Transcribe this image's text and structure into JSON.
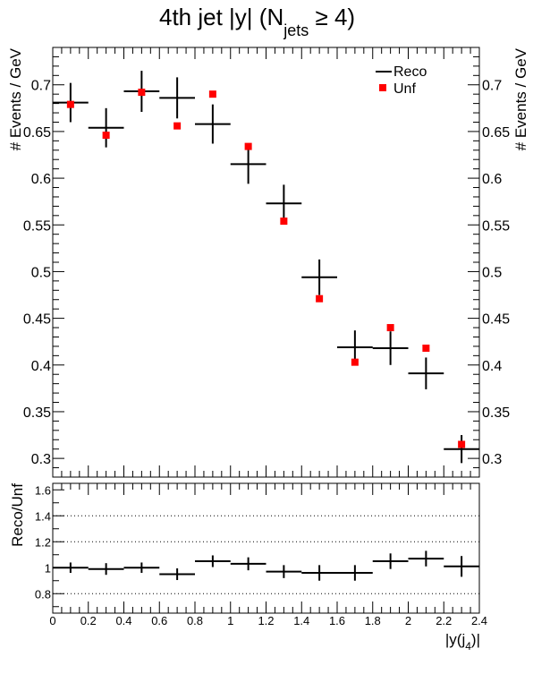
{
  "chart_data": [
    {
      "type": "scatter",
      "title": {
        "main": "4th jet |y| (N",
        "subscript": "jets",
        "suffix": " ≥ 4)"
      },
      "ylabel": "# Events / GeV",
      "ylim": [
        0.28,
        0.74
      ],
      "y_ticks": [
        0.3,
        0.35,
        0.4,
        0.45,
        0.5,
        0.55,
        0.6,
        0.65,
        0.7
      ],
      "y_tick_labels": [
        "0.3",
        "0.35",
        "0.4",
        "0.45",
        "0.5",
        "0.55",
        "0.6",
        "0.65",
        "0.7"
      ],
      "xlim": [
        0,
        2.4
      ],
      "bin_edges": [
        0,
        0.2,
        0.4,
        0.6,
        0.8,
        1.0,
        1.2,
        1.4,
        1.6,
        1.8,
        2.0,
        2.2,
        2.4
      ],
      "legend": {
        "placement": "top-right",
        "entries": [
          {
            "name": "Reco",
            "marker": "cross",
            "color": "#000000"
          },
          {
            "name": "Unf",
            "marker": "square",
            "color": "#ff0000"
          }
        ]
      },
      "series": [
        {
          "name": "Reco",
          "x": [
            0.1,
            0.3,
            0.5,
            0.7,
            0.9,
            1.1,
            1.3,
            1.5,
            1.7,
            1.9,
            2.1,
            2.3
          ],
          "values": [
            0.681,
            0.654,
            0.693,
            0.686,
            0.658,
            0.615,
            0.573,
            0.494,
            0.419,
            0.418,
            0.391,
            0.31
          ],
          "y_err": [
            0.021,
            0.021,
            0.022,
            0.022,
            0.021,
            0.021,
            0.02,
            0.019,
            0.018,
            0.018,
            0.017,
            0.015
          ],
          "color": "#000000"
        },
        {
          "name": "Unf",
          "x": [
            0.1,
            0.3,
            0.5,
            0.7,
            0.9,
            1.1,
            1.3,
            1.5,
            1.7,
            1.9,
            2.1,
            2.3
          ],
          "values": [
            0.679,
            0.646,
            0.692,
            0.656,
            0.69,
            0.634,
            0.554,
            0.471,
            0.403,
            0.44,
            0.418,
            0.315
          ],
          "color": "#ff0000"
        }
      ]
    },
    {
      "type": "scatter",
      "ylabel": "Reco/Unf",
      "xlabel": "|y(j",
      "xlabel_sub": "4",
      "xlabel_suffix": ")|",
      "ylim": [
        0.65,
        1.65
      ],
      "y_ticks": [
        0.8,
        1.0,
        1.2,
        1.4,
        1.6
      ],
      "y_tick_labels": [
        "0.8",
        "1",
        "1.2",
        "1.4",
        "1.6"
      ],
      "grid_y": [
        0.8,
        1.2,
        1.4
      ],
      "xlim": [
        0,
        2.4
      ],
      "x_ticks": [
        0,
        0.2,
        0.4,
        0.6,
        0.8,
        1.0,
        1.2,
        1.4,
        1.6,
        1.8,
        2.0,
        2.2,
        2.4
      ],
      "x_tick_labels": [
        "0",
        "0.2",
        "0.4",
        "0.6",
        "0.8",
        "1",
        "1.2",
        "1.4",
        "1.6",
        "1.8",
        "2",
        "2.2",
        "2.4"
      ],
      "series": [
        {
          "name": "Reco/Unf",
          "x": [
            0.1,
            0.3,
            0.5,
            0.7,
            0.9,
            1.1,
            1.3,
            1.5,
            1.7,
            1.9,
            2.1,
            2.3
          ],
          "values": [
            1.0,
            0.99,
            1.0,
            0.95,
            1.05,
            1.03,
            0.97,
            0.96,
            0.96,
            1.05,
            1.07,
            1.01
          ],
          "y_err": [
            0.04,
            0.045,
            0.04,
            0.045,
            0.045,
            0.05,
            0.05,
            0.06,
            0.06,
            0.06,
            0.06,
            0.08
          ],
          "color": "#000000"
        }
      ]
    }
  ]
}
